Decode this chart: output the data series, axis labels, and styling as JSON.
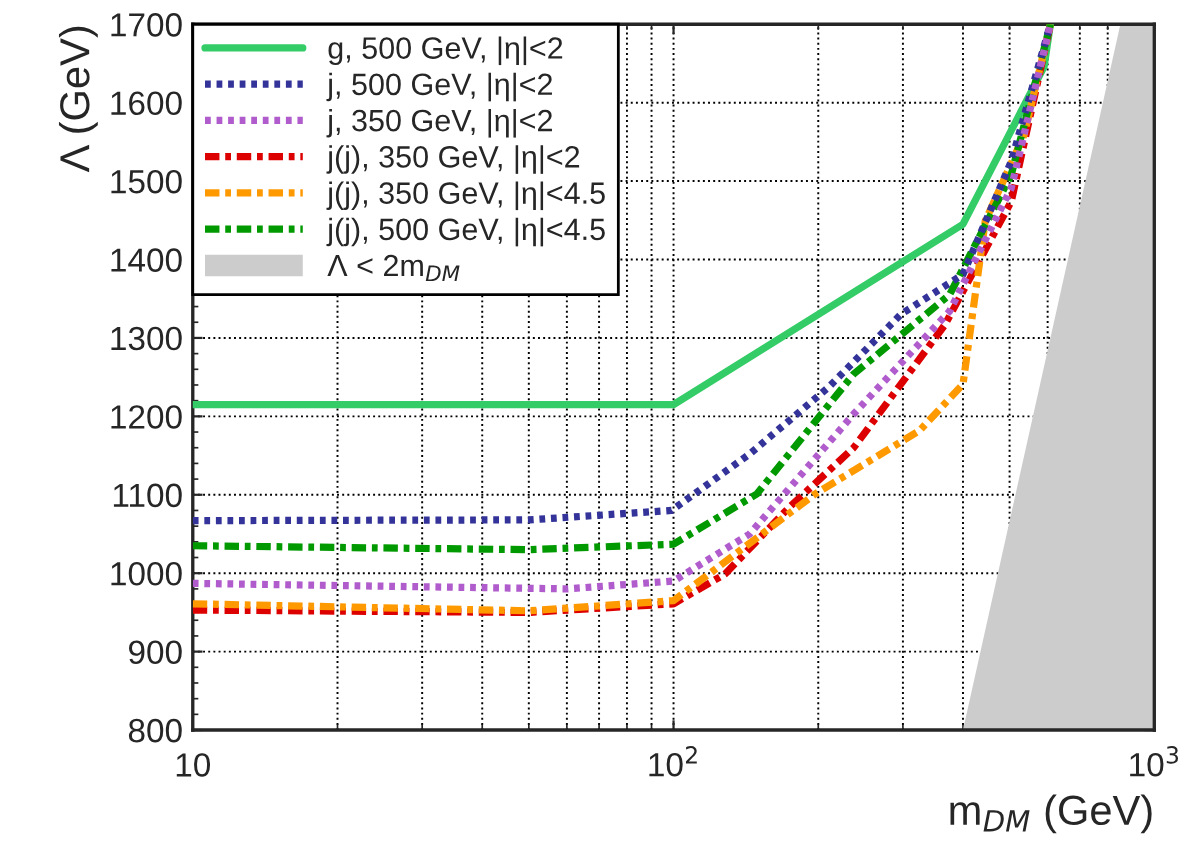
{
  "chart_data": {
    "type": "line",
    "xlabel": "m$_{DM}$ (GeV)",
    "ylabel": "Λ (GeV)",
    "log": "x",
    "xlim": [
      10,
      1000
    ],
    "xticks": [
      10,
      {
        "value": 100,
        "label": "10$^{2}$"
      },
      {
        "value": 1000,
        "label": "10$^{3}$"
      }
    ],
    "ylim": [
      800,
      1700
    ],
    "yticks": [
      800,
      900,
      1000,
      1100,
      1200,
      1300,
      1400,
      1500,
      1600,
      1700
    ],
    "grid": true,
    "legend": "top left",
    "series": [
      {
        "name": "g, 500 GeV, |η|<2",
        "color": "#33cc66",
        "line_style": "solid",
        "x": [
          10,
          100,
          400,
          590,
          608
        ],
        "values": [
          1215,
          1215,
          1445,
          1646,
          1700
        ]
      },
      {
        "name": "j, 500 GeV, |η|<2",
        "color": "#333399",
        "line_style": "dotted",
        "x": [
          10,
          50,
          99,
          144,
          210,
          297,
          400,
          504,
          608
        ],
        "values": [
          1067,
          1068,
          1080,
          1152,
          1237,
          1330,
          1381,
          1525,
          1700
        ]
      },
      {
        "name": "j, 350 GeV, |η|<2",
        "color": "#b05ccc",
        "line_style": "dotted",
        "x": [
          10,
          60,
          100,
          144,
          237,
          375,
          504,
          608
        ],
        "values": [
          987,
          980,
          990,
          1050,
          1203,
          1334,
          1491,
          1700
        ]
      },
      {
        "name": "j(j), 350 GeV, |η|<2",
        "color": "#dd0000",
        "line_style": "dashdot",
        "x": [
          10,
          50,
          100,
          128,
          174,
          237,
          367,
          504,
          608
        ],
        "values": [
          953,
          950,
          961,
          999,
          1084,
          1160,
          1317,
          1474,
          1700
        ]
      },
      {
        "name": "j(j), 350 GeV, |η|<4.5",
        "color": "#ff9900",
        "line_style": "dashdot",
        "x": [
          10,
          50,
          100,
          197,
          325,
          400,
          445,
          536,
          608
        ],
        "values": [
          961,
          952,
          965,
          1101,
          1182,
          1241,
          1449,
          1559,
          1700
        ]
      },
      {
        "name": "j(j), 500 GeV, |η|<4.5",
        "color": "#009900",
        "line_style": "dashdot",
        "x": [
          10,
          50,
          100,
          149,
          237,
          375,
          504,
          608
        ],
        "values": [
          1035,
          1030,
          1037,
          1101,
          1254,
          1355,
          1508,
          1700
        ]
      },
      {
        "name": "Λ < 2m$_{DM}$",
        "type": "area",
        "color": "#cccccc",
        "x": [
          400,
          850,
          1000
        ],
        "values": [
          800,
          1700,
          1700
        ]
      }
    ]
  }
}
